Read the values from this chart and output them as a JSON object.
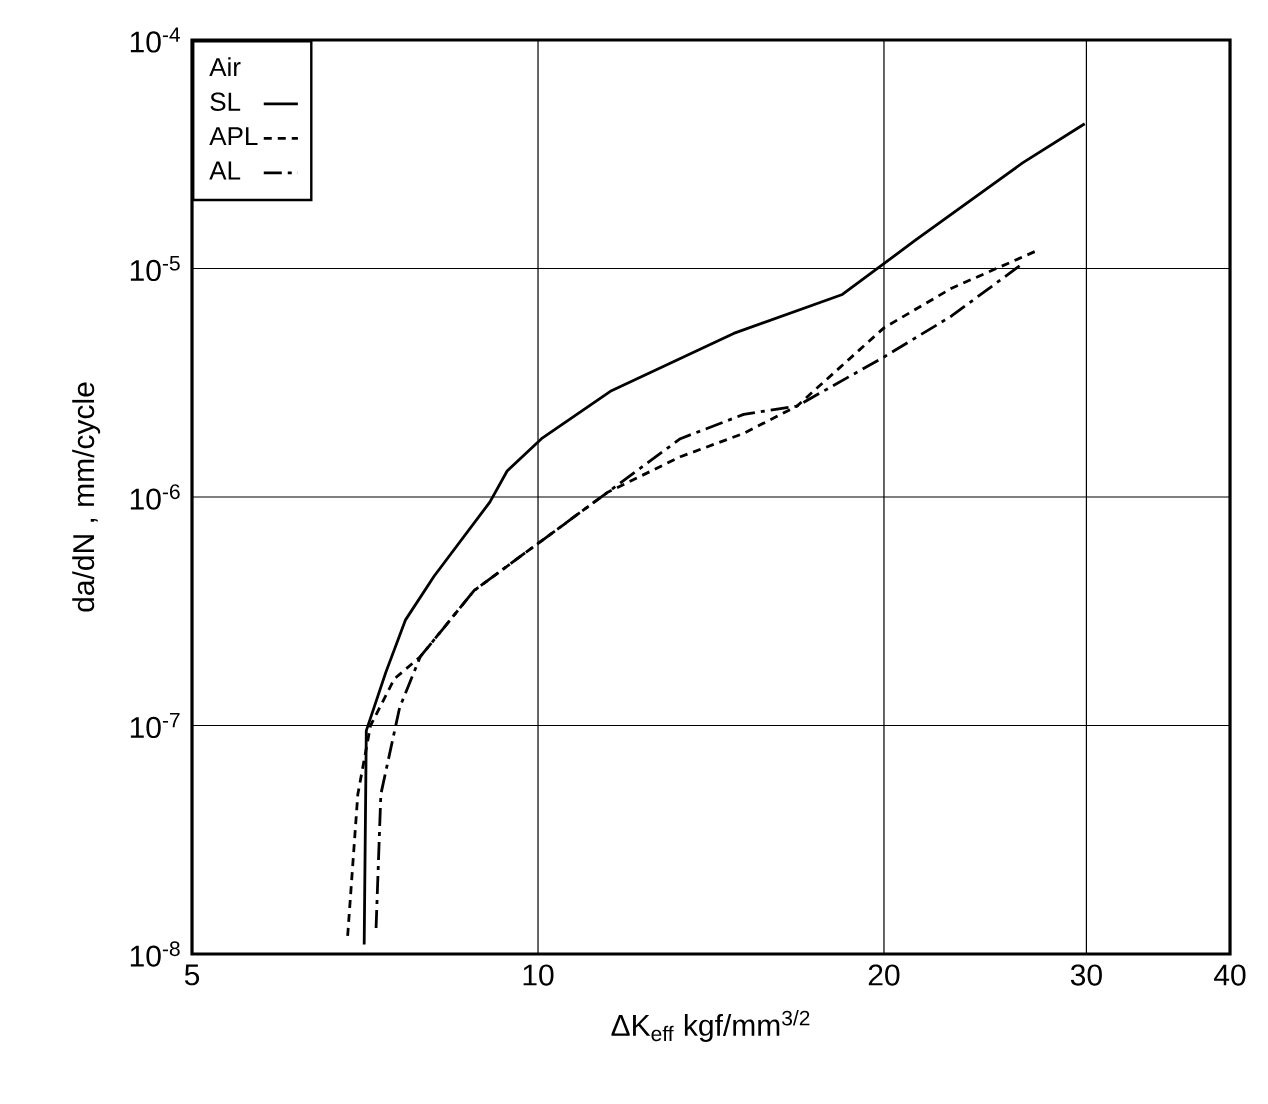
{
  "chart_data": {
    "type": "line",
    "xlabel": "ΔK$_{eff}$ kgf/mm$^{3/2}$",
    "ylabel": "da/dN , mm/cycle",
    "legend_title": "Air",
    "legend": "top left",
    "grid": true,
    "log": "xy",
    "xlim": [
      5,
      40
    ],
    "xticks": [
      5,
      10,
      20,
      30,
      40
    ],
    "ylim": [
      1e-08,
      0.0001
    ],
    "yticks": [
      {
        "value": 1e-08,
        "label": "10$^{-8}$"
      },
      {
        "value": 1e-07,
        "label": "10$^{-7}$"
      },
      {
        "value": 1e-06,
        "label": "10$^{-6}$"
      },
      {
        "value": 1e-05,
        "label": "10$^{-5}$"
      },
      {
        "value": 0.0001,
        "label": "10$^{-4}$"
      }
    ],
    "series": [
      {
        "name": "SL",
        "color": "#000000",
        "line_style": "solid",
        "x": [
          7.06,
          7.09,
          7.37,
          7.67,
          8.12,
          9.08,
          9.4,
          10.07,
          11.56,
          14.8,
          18.4,
          21.3,
          26.4,
          29.9
        ],
        "values": [
          1.1e-08,
          9.5e-08,
          1.7e-07,
          2.9e-07,
          4.5e-07,
          9.5e-07,
          1.3e-06,
          1.8e-06,
          2.9e-06,
          5.2e-06,
          7.7e-06,
          1.33e-05,
          2.9e-05,
          4.3e-05
        ]
      },
      {
        "name": "APL",
        "color": "#000000",
        "line_style": "dashed",
        "x": [
          6.83,
          6.97,
          7.15,
          7.5,
          7.9,
          8.8,
          10.1,
          11.5,
          13.3,
          15.1,
          16.8,
          20,
          22.9,
          27.2
        ],
        "values": [
          1.2e-08,
          5e-08,
          1e-07,
          1.6e-07,
          2e-07,
          3.9e-07,
          6.5e-07,
          1.05e-06,
          1.5e-06,
          1.9e-06,
          2.5e-06,
          5.5e-06,
          8.2e-06,
          1.2e-05
        ]
      },
      {
        "name": "AL",
        "color": "#000000",
        "line_style": "dashdot",
        "x": [
          7.23,
          7.3,
          7.58,
          7.9,
          8.8,
          10.1,
          11.5,
          13.3,
          15.1,
          16.8,
          20,
          22.9,
          26.4
        ],
        "values": [
          1.3e-08,
          5e-08,
          1.2e-07,
          2e-07,
          3.9e-07,
          6.5e-07,
          1.05e-06,
          1.8e-06,
          2.3e-06,
          2.5e-06,
          4.1e-06,
          6.2e-06,
          1.05e-05
        ]
      }
    ]
  }
}
